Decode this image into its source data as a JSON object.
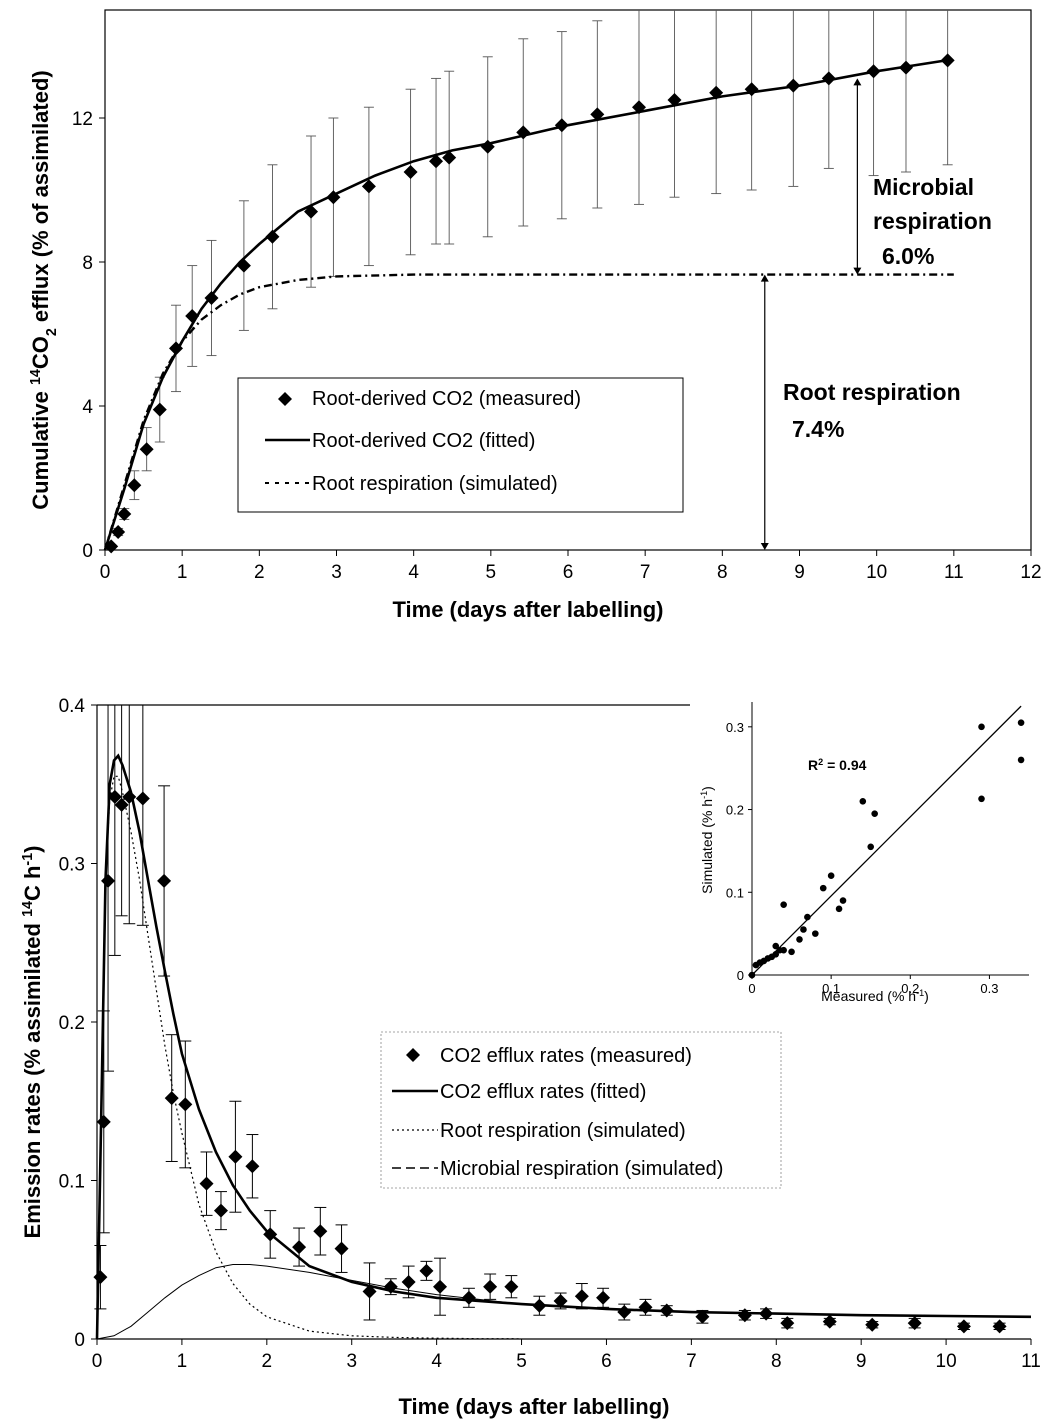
{
  "chart_data": [
    {
      "type": "line",
      "xlabel": "Time (days after labelling)",
      "ylabel": "Cumulative 14CO2 efflux (% of assimilated)",
      "ylabel_parts": {
        "pre": "Cumulative ",
        "sup": "14",
        "mid": "CO",
        "sub": "2",
        "post": " efflux (% of assimilated)"
      },
      "xlim": [
        0,
        12
      ],
      "ylim": [
        0,
        15
      ],
      "xticks": [
        "0",
        "1",
        "2",
        "3",
        "4",
        "5",
        "6",
        "7",
        "8",
        "9",
        "10",
        "11",
        "12"
      ],
      "yticks": [
        "0",
        "4",
        "8",
        "12"
      ],
      "grid": false,
      "legend_position": "center",
      "legend": [
        {
          "label": "Root-derived CO2 (measured)",
          "style": "diamond"
        },
        {
          "label": "Root-derived CO2 (fitted)",
          "style": "solid"
        },
        {
          "label": "Root respiration (simulated)",
          "style": "dashed"
        }
      ],
      "annotations": {
        "microbial": [
          "Microbial",
          "respiration",
          "6.0%"
        ],
        "root": [
          "Root respiration",
          "7.4%"
        ]
      },
      "series": [
        {
          "name": "Root-derived CO2 (measured)",
          "x": [
            0.08,
            0.17,
            0.25,
            0.38,
            0.54,
            0.71,
            0.92,
            1.13,
            1.38,
            1.8,
            2.17,
            2.67,
            2.96,
            3.42,
            3.96,
            4.29,
            4.46,
            4.96,
            5.42,
            5.92,
            6.38,
            6.92,
            7.38,
            7.92,
            8.38,
            8.92,
            9.38,
            9.96,
            10.38,
            10.92
          ],
          "y": [
            0.1,
            0.5,
            1.0,
            1.8,
            2.8,
            3.9,
            5.6,
            6.5,
            7.0,
            7.9,
            8.7,
            9.4,
            9.8,
            10.1,
            10.5,
            10.8,
            10.9,
            11.2,
            11.6,
            11.8,
            12.1,
            12.3,
            12.5,
            12.7,
            12.8,
            12.9,
            13.1,
            13.3,
            13.4,
            13.6
          ],
          "err": [
            0.05,
            0.1,
            0.15,
            0.4,
            0.6,
            0.9,
            1.2,
            1.4,
            1.6,
            1.8,
            2.0,
            2.1,
            2.2,
            2.2,
            2.3,
            2.3,
            2.4,
            2.5,
            2.6,
            2.6,
            2.6,
            2.7,
            2.7,
            2.8,
            2.8,
            2.8,
            2.5,
            2.9,
            2.9,
            2.9
          ]
        },
        {
          "name": "Root-derived CO2 (fitted)",
          "x": [
            0,
            0.25,
            0.5,
            0.75,
            1,
            1.25,
            1.5,
            1.75,
            2,
            2.5,
            3,
            3.5,
            4,
            4.5,
            5,
            6,
            7,
            8,
            9,
            10,
            10.9
          ],
          "y": [
            0,
            1.7,
            3.5,
            4.8,
            5.8,
            6.7,
            7.4,
            8.0,
            8.5,
            9.4,
            9.9,
            10.4,
            10.8,
            11.1,
            11.3,
            11.8,
            12.2,
            12.6,
            12.9,
            13.3,
            13.6
          ]
        },
        {
          "name": "Root respiration (simulated)",
          "x": [
            0,
            0.25,
            0.5,
            0.75,
            1,
            1.25,
            1.5,
            1.75,
            2,
            2.5,
            3,
            4,
            5,
            6,
            7,
            8,
            9,
            10,
            11
          ],
          "y": [
            0,
            1.8,
            3.6,
            4.9,
            5.8,
            6.4,
            6.8,
            7.1,
            7.3,
            7.5,
            7.6,
            7.65,
            7.65,
            7.65,
            7.65,
            7.65,
            7.65,
            7.65,
            7.65
          ]
        }
      ]
    },
    {
      "type": "line",
      "xlabel": "Time (days after labelling)",
      "ylabel": "Emission rates (% assimilated 14C h-1)",
      "ylabel_parts": {
        "pre": "Emission rates (% assimilated ",
        "sup": "14",
        "mid": "C h",
        "sup2": "-1",
        "post": ")"
      },
      "xlim": [
        0,
        11
      ],
      "ylim": [
        0,
        0.4
      ],
      "xticks": [
        "0",
        "1",
        "2",
        "3",
        "4",
        "5",
        "6",
        "7",
        "8",
        "9",
        "10",
        "11"
      ],
      "yticks": [
        "0",
        "0.1",
        "0.2",
        "0.3",
        "0.4"
      ],
      "grid": false,
      "legend_position": "center-right",
      "legend": [
        {
          "label": "CO2 efflux rates (measured)",
          "style": "diamond"
        },
        {
          "label": "CO2 efflux rates (fitted)",
          "style": "solid"
        },
        {
          "label": "Root respiration (simulated)",
          "style": "dotted"
        },
        {
          "label": "Microbial respiration (simulated)",
          "style": "dashed"
        }
      ],
      "series": [
        {
          "name": "CO2 efflux rates (measured)",
          "x": [
            0.04,
            0.08,
            0.13,
            0.21,
            0.29,
            0.38,
            0.54,
            0.79,
            0.88,
            1.04,
            1.29,
            1.46,
            1.63,
            1.83,
            2.04,
            2.38,
            2.63,
            2.88,
            3.21,
            3.46,
            3.67,
            3.88,
            4.04,
            4.38,
            4.63,
            4.88,
            5.21,
            5.46,
            5.71,
            5.96,
            6.21,
            6.46,
            6.71,
            7.13,
            7.63,
            7.88,
            8.13,
            8.63,
            9.13,
            9.63,
            10.21,
            10.63
          ],
          "y": [
            0.039,
            0.137,
            0.289,
            0.342,
            0.337,
            0.342,
            0.341,
            0.289,
            0.152,
            0.148,
            0.098,
            0.081,
            0.115,
            0.109,
            0.066,
            0.058,
            0.068,
            0.057,
            0.03,
            0.033,
            0.036,
            0.043,
            0.033,
            0.026,
            0.033,
            0.033,
            0.021,
            0.024,
            0.027,
            0.026,
            0.017,
            0.02,
            0.018,
            0.014,
            0.015,
            0.016,
            0.01,
            0.011,
            0.009,
            0.01,
            0.008,
            0.008
          ],
          "err": [
            0.02,
            0.07,
            0.12,
            0.1,
            0.07,
            0.08,
            0.08,
            0.06,
            0.04,
            0.04,
            0.02,
            0.012,
            0.035,
            0.02,
            0.015,
            0.012,
            0.015,
            0.015,
            0.018,
            0.005,
            0.01,
            0.006,
            0.018,
            0.006,
            0.008,
            0.007,
            0.006,
            0.005,
            0.008,
            0.006,
            0.005,
            0.005,
            0.003,
            0.004,
            0.003,
            0.003,
            0.003,
            0.002,
            0.002,
            0.003,
            0.002,
            0.002
          ]
        },
        {
          "name": "CO2 efflux rates (fitted)",
          "x": [
            0,
            0.05,
            0.1,
            0.15,
            0.2,
            0.25,
            0.3,
            0.4,
            0.5,
            0.6,
            0.7,
            0.8,
            0.9,
            1.0,
            1.2,
            1.4,
            1.6,
            1.8,
            2.0,
            2.5,
            3.0,
            3.5,
            4.0,
            5.0,
            6.0,
            7.0,
            8.0,
            9.0,
            10.0,
            11.0
          ],
          "y": [
            0,
            0.14,
            0.29,
            0.35,
            0.365,
            0.368,
            0.362,
            0.345,
            0.32,
            0.29,
            0.26,
            0.232,
            0.205,
            0.18,
            0.145,
            0.118,
            0.097,
            0.081,
            0.068,
            0.046,
            0.036,
            0.03,
            0.026,
            0.022,
            0.019,
            0.017,
            0.016,
            0.015,
            0.0145,
            0.014
          ]
        },
        {
          "name": "Root respiration (simulated)",
          "x": [
            0,
            0.05,
            0.1,
            0.15,
            0.2,
            0.25,
            0.3,
            0.4,
            0.5,
            0.6,
            0.7,
            0.8,
            0.9,
            1.0,
            1.2,
            1.4,
            1.6,
            1.8,
            2.0,
            2.5,
            3.0,
            3.5,
            4.0,
            4.5,
            5.0
          ],
          "y": [
            0,
            0.14,
            0.29,
            0.34,
            0.355,
            0.355,
            0.345,
            0.32,
            0.29,
            0.255,
            0.22,
            0.185,
            0.155,
            0.13,
            0.085,
            0.055,
            0.035,
            0.022,
            0.014,
            0.005,
            0.002,
            0.001,
            0.0005,
            0.0002,
            0.0001
          ]
        },
        {
          "name": "Microbial respiration (simulated)",
          "x": [
            0,
            0.2,
            0.4,
            0.6,
            0.8,
            1.0,
            1.2,
            1.4,
            1.6,
            1.8,
            2.0,
            2.5,
            3.0,
            3.5,
            4.0,
            5.0,
            6.0,
            7.0,
            8.0,
            9.0,
            10.0,
            11.0
          ],
          "y": [
            0,
            0.002,
            0.008,
            0.017,
            0.026,
            0.034,
            0.04,
            0.045,
            0.047,
            0.047,
            0.046,
            0.042,
            0.037,
            0.032,
            0.028,
            0.022,
            0.019,
            0.017,
            0.016,
            0.015,
            0.0145,
            0.014
          ]
        }
      ],
      "inset": {
        "type": "scatter",
        "xlabel": "Measured (% h-1)",
        "ylabel": "Simulated (% h-1)",
        "xlabel_parts": {
          "pre": "Measured (% h",
          "sup": "-1",
          "post": ")"
        },
        "ylabel_parts": {
          "pre": "Simulated (% h",
          "sup": "-1",
          "post": ")"
        },
        "r2_parts": {
          "pre": "R",
          "sup": "2",
          "post": " = 0.94"
        },
        "xlim": [
          0,
          0.35
        ],
        "ylim": [
          0,
          0.33
        ],
        "xticks": [
          "0",
          "0.1",
          "0.2",
          "0.3"
        ],
        "yticks": [
          "0",
          "0.1",
          "0.2",
          "0.3"
        ],
        "fit": {
          "x": [
            0,
            0.34
          ],
          "y": [
            0,
            0.325
          ]
        },
        "x": [
          0,
          0.005,
          0.01,
          0.015,
          0.02,
          0.025,
          0.03,
          0.03,
          0.035,
          0.04,
          0.04,
          0.05,
          0.06,
          0.065,
          0.07,
          0.08,
          0.09,
          0.1,
          0.11,
          0.115,
          0.14,
          0.15,
          0.155,
          0.29,
          0.29,
          0.34,
          0.34
        ],
        "y": [
          0,
          0.012,
          0.015,
          0.017,
          0.02,
          0.022,
          0.025,
          0.035,
          0.03,
          0.03,
          0.085,
          0.028,
          0.043,
          0.055,
          0.07,
          0.05,
          0.105,
          0.12,
          0.08,
          0.09,
          0.21,
          0.155,
          0.195,
          0.3,
          0.213,
          0.26,
          0.305
        ]
      }
    }
  ]
}
